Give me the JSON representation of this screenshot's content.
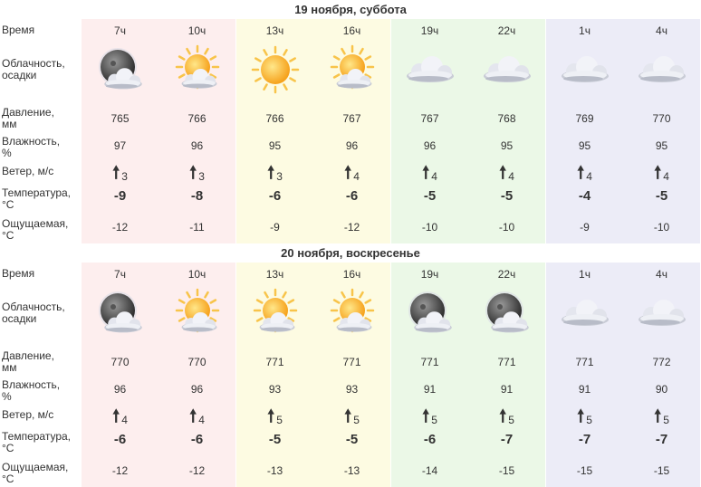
{
  "row_labels": {
    "time": "Время",
    "cloud": [
      "Облачность,",
      "осадки"
    ],
    "pressure": [
      "Давление,",
      "мм"
    ],
    "humidity": [
      "Влажность,",
      "%"
    ],
    "wind": "Ветер, м/с",
    "temperature": [
      "Температура,",
      "°C"
    ],
    "feels": [
      "Ощущаемая,",
      "°C"
    ]
  },
  "wind_arrow": "🠕",
  "days": [
    {
      "title": "19 ноября, суббота",
      "hours": [
        {
          "time": "7ч",
          "icon": "night-cloudy-icon",
          "pressure": "765",
          "humidity": "97",
          "wind": "3",
          "temp": "-9",
          "feels": "-12"
        },
        {
          "time": "10ч",
          "icon": "sun-cloud-icon",
          "pressure": "766",
          "humidity": "96",
          "wind": "3",
          "temp": "-8",
          "feels": "-11"
        },
        {
          "time": "13ч",
          "icon": "sun-icon",
          "pressure": "766",
          "humidity": "95",
          "wind": "3",
          "temp": "-6",
          "feels": "-9"
        },
        {
          "time": "16ч",
          "icon": "sun-cloud-icon",
          "pressure": "767",
          "humidity": "96",
          "wind": "4",
          "temp": "-6",
          "feels": "-12"
        },
        {
          "time": "19ч",
          "icon": "clouds-icon",
          "pressure": "767",
          "humidity": "96",
          "wind": "4",
          "temp": "-5",
          "feels": "-10"
        },
        {
          "time": "22ч",
          "icon": "clouds-icon",
          "pressure": "768",
          "humidity": "95",
          "wind": "4",
          "temp": "-5",
          "feels": "-10"
        },
        {
          "time": "1ч",
          "icon": "clouds-icon",
          "pressure": "769",
          "humidity": "95",
          "wind": "4",
          "temp": "-4",
          "feels": "-9"
        },
        {
          "time": "4ч",
          "icon": "clouds-icon",
          "pressure": "770",
          "humidity": "95",
          "wind": "4",
          "temp": "-5",
          "feels": "-10"
        }
      ]
    },
    {
      "title": "20 ноября, воскресенье",
      "hours": [
        {
          "time": "7ч",
          "icon": "night-cloudy-icon",
          "pressure": "770",
          "humidity": "96",
          "wind": "4",
          "temp": "-6",
          "feels": "-12"
        },
        {
          "time": "10ч",
          "icon": "sun-cloud-icon",
          "pressure": "770",
          "humidity": "96",
          "wind": "4",
          "temp": "-6",
          "feels": "-12"
        },
        {
          "time": "13ч",
          "icon": "sun-cloud-icon",
          "pressure": "771",
          "humidity": "93",
          "wind": "5",
          "temp": "-5",
          "feels": "-13"
        },
        {
          "time": "16ч",
          "icon": "sun-cloud-icon",
          "pressure": "771",
          "humidity": "93",
          "wind": "5",
          "temp": "-5",
          "feels": "-13"
        },
        {
          "time": "19ч",
          "icon": "night-cloudy-icon",
          "pressure": "771",
          "humidity": "91",
          "wind": "5",
          "temp": "-6",
          "feels": "-14"
        },
        {
          "time": "22ч",
          "icon": "night-cloudy-icon",
          "pressure": "771",
          "humidity": "91",
          "wind": "5",
          "temp": "-7",
          "feels": "-15"
        },
        {
          "time": "1ч",
          "icon": "clouds-icon",
          "pressure": "771",
          "humidity": "91",
          "wind": "5",
          "temp": "-7",
          "feels": "-15"
        },
        {
          "time": "4ч",
          "icon": "clouds-icon",
          "pressure": "772",
          "humidity": "90",
          "wind": "5",
          "temp": "-7",
          "feels": "-15"
        }
      ]
    }
  ]
}
